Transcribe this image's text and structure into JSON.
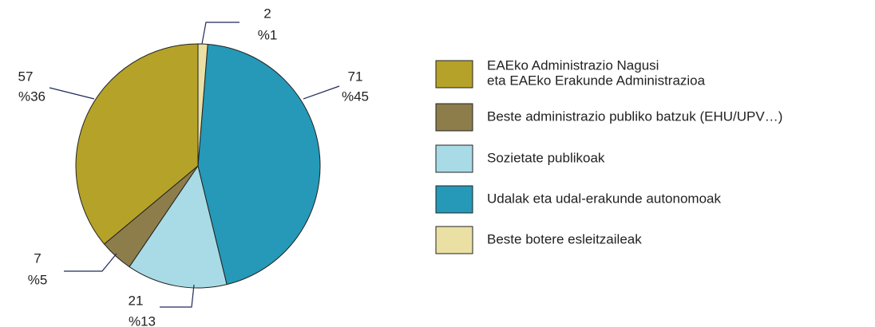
{
  "chart_data": {
    "type": "pie",
    "series": [
      {
        "name": "EAEko Administrazio Nagusi\neta EAEko Erakunde Administrazioa",
        "color": "#b5a228",
        "values": [
          57
        ],
        "percent_labels": [
          "%36"
        ]
      },
      {
        "name": "Beste administrazio publiko batzuk (EHU/UPV…)",
        "color": "#8d7d4a",
        "values": [
          7
        ],
        "percent_labels": [
          "%5"
        ]
      },
      {
        "name": "Sozietate publikoak",
        "color": "#a8dbe6",
        "values": [
          21
        ],
        "percent_labels": [
          "%13"
        ]
      },
      {
        "name": "Udalak eta udal-erakunde autonomoak",
        "color": "#2599b7",
        "values": [
          71
        ],
        "percent_labels": [
          "%45"
        ]
      },
      {
        "name": "Beste botere esleitzaileak",
        "color": "#ebe0a4",
        "values": [
          2
        ],
        "percent_labels": [
          "%1"
        ]
      }
    ]
  }
}
